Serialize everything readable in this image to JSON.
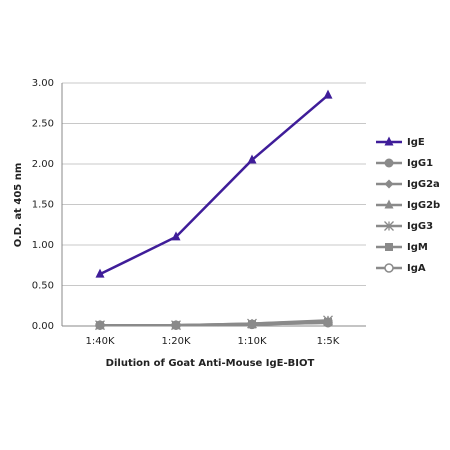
{
  "chart_data": {
    "type": "line",
    "categories": [
      "1:40K",
      "1:20K",
      "1:10K",
      "1:5K"
    ],
    "x_label": "Dilution of Goat Anti-Mouse IgE-BIOT",
    "y_label": "O.D. at 405 nm",
    "ylim": [
      0,
      3
    ],
    "yticks": [
      {
        "value": 0,
        "label": "0.00"
      },
      {
        "value": 0.5,
        "label": "0.50"
      },
      {
        "value": 1,
        "label": "1.00"
      },
      {
        "value": 1.5,
        "label": "1.50"
      },
      {
        "value": 2,
        "label": "2.00"
      },
      {
        "value": 2.5,
        "label": "2.50"
      },
      {
        "value": 3,
        "label": "3.00"
      }
    ],
    "grid": true,
    "legend": "right",
    "series": [
      {
        "name": "IgE",
        "color": "#3f1d99",
        "marker": "triangle",
        "values": [
          0.64,
          1.1,
          2.05,
          2.85
        ]
      },
      {
        "name": "IgG1",
        "color": "#8a8a8a",
        "marker": "circle",
        "values": [
          0.01,
          0.01,
          0.02,
          0.04
        ]
      },
      {
        "name": "IgG2a",
        "color": "#8a8a8a",
        "marker": "diamond",
        "values": [
          0.01,
          0.01,
          0.03,
          0.06
        ]
      },
      {
        "name": "IgG2b",
        "color": "#8a8a8a",
        "marker": "triangle",
        "values": [
          0.01,
          0.01,
          0.02,
          0.05
        ]
      },
      {
        "name": "IgG3",
        "color": "#8a8a8a",
        "marker": "asterisk",
        "values": [
          0.01,
          0.01,
          0.03,
          0.07
        ]
      },
      {
        "name": "IgM",
        "color": "#8a8a8a",
        "marker": "square",
        "values": [
          0.01,
          0.01,
          0.02,
          0.05
        ]
      },
      {
        "name": "IgA",
        "color": "#8a8a8a",
        "marker": "open-circle",
        "values": [
          0.01,
          0.01,
          0.02,
          0.04
        ]
      }
    ]
  }
}
